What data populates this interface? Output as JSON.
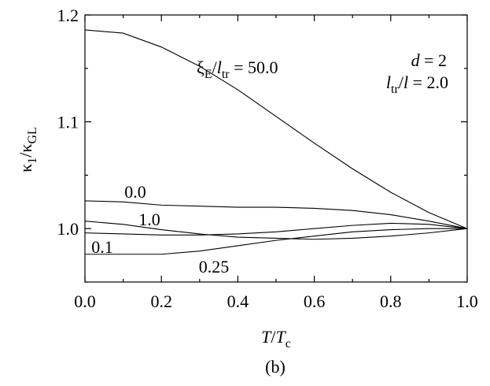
{
  "chart_data": {
    "type": "line",
    "x": [
      0,
      0.1,
      0.2,
      0.3,
      0.4,
      0.5,
      0.6,
      0.7,
      0.8,
      0.9,
      1.0
    ],
    "series": [
      {
        "name": "50.0",
        "color": "#000000",
        "values": [
          1.186,
          1.183,
          1.17,
          1.152,
          1.13,
          1.105,
          1.08,
          1.056,
          1.034,
          1.015,
          1.0
        ]
      },
      {
        "name": "0.0",
        "color": "#000000",
        "values": [
          1.026,
          1.025,
          1.022,
          1.021,
          1.02,
          1.02,
          1.019,
          1.017,
          1.013,
          1.007,
          1.0
        ]
      },
      {
        "name": "1.0",
        "color": "#000000",
        "values": [
          1.007,
          1.004,
          0.999,
          0.995,
          0.992,
          0.991,
          0.99,
          0.991,
          0.993,
          0.996,
          1.0
        ]
      },
      {
        "name": "0.1",
        "color": "#000000",
        "values": [
          0.996,
          0.995,
          0.994,
          0.994,
          0.995,
          0.997,
          1.0,
          1.003,
          1.005,
          1.004,
          1.0
        ]
      },
      {
        "name": "0.25",
        "color": "#000000",
        "values": [
          0.976,
          0.976,
          0.976,
          0.979,
          0.984,
          0.989,
          0.993,
          0.997,
          0.999,
          1.0,
          1.0
        ]
      }
    ],
    "xlim": [
      0,
      1.0
    ],
    "ylim": [
      0.95,
      1.2
    ],
    "xticks": [
      {
        "value": 0,
        "label": "0.0"
      },
      {
        "value": 0.2,
        "label": "0.2"
      },
      {
        "value": 0.4,
        "label": "0.4"
      },
      {
        "value": 0.6,
        "label": "0.6"
      },
      {
        "value": 0.8,
        "label": "0.8"
      },
      {
        "value": 1.0,
        "label": "1.0"
      }
    ],
    "xminorticks": [
      0.1,
      0.3,
      0.5,
      0.7,
      0.9
    ],
    "yticks": [
      {
        "value": 1.0,
        "label": "1.0"
      },
      {
        "value": 1.1,
        "label": "1.1"
      },
      {
        "value": 1.2,
        "label": "1.2"
      }
    ],
    "yminorticks": [
      0.95,
      1.05,
      1.15
    ],
    "xlabel": [
      {
        "t": "T",
        "i": true
      },
      {
        "t": "/"
      },
      {
        "t": "T",
        "i": true
      },
      {
        "t": "c",
        "sub": true
      }
    ],
    "ylabel": [
      {
        "t": "κ"
      },
      {
        "t": "1",
        "sub": true
      },
      {
        "t": "/κ"
      },
      {
        "t": "GL",
        "sub": true
      }
    ],
    "annotation_curve": [
      {
        "t": "ξ"
      },
      {
        "t": "E",
        "sub": true
      },
      {
        "t": "/"
      },
      {
        "t": "l",
        "i": true
      },
      {
        "t": "tr",
        "sub": true
      },
      {
        "t": " = "
      }
    ],
    "annotation_d": [
      {
        "t": "d",
        "i": true
      },
      {
        "t": " = 2"
      }
    ],
    "annotation_l": [
      {
        "t": "l",
        "i": true
      },
      {
        "t": "tr",
        "sub": true
      },
      {
        "t": "/"
      },
      {
        "t": "l",
        "i": true
      },
      {
        "t": " = 2.0"
      }
    ],
    "caption": "(b)"
  }
}
